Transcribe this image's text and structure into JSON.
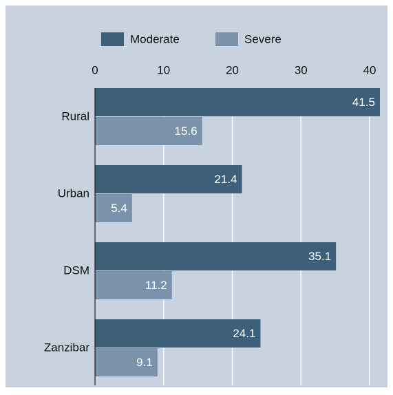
{
  "chart_data": {
    "type": "bar",
    "orientation": "horizontal",
    "categories": [
      "Rural",
      "Urban",
      "DSM",
      "Zanzibar"
    ],
    "series": [
      {
        "name": "Moderate",
        "color": "#3d5f78",
        "values": [
          41.5,
          21.4,
          35.1,
          24.1
        ]
      },
      {
        "name": "Severe",
        "color": "#7a93aa",
        "values": [
          15.6,
          5.4,
          11.2,
          9.1
        ]
      }
    ],
    "xlim": [
      0,
      42.5
    ],
    "xticks": [
      0,
      10,
      20,
      30,
      40
    ],
    "grid": true,
    "legend": "top"
  }
}
